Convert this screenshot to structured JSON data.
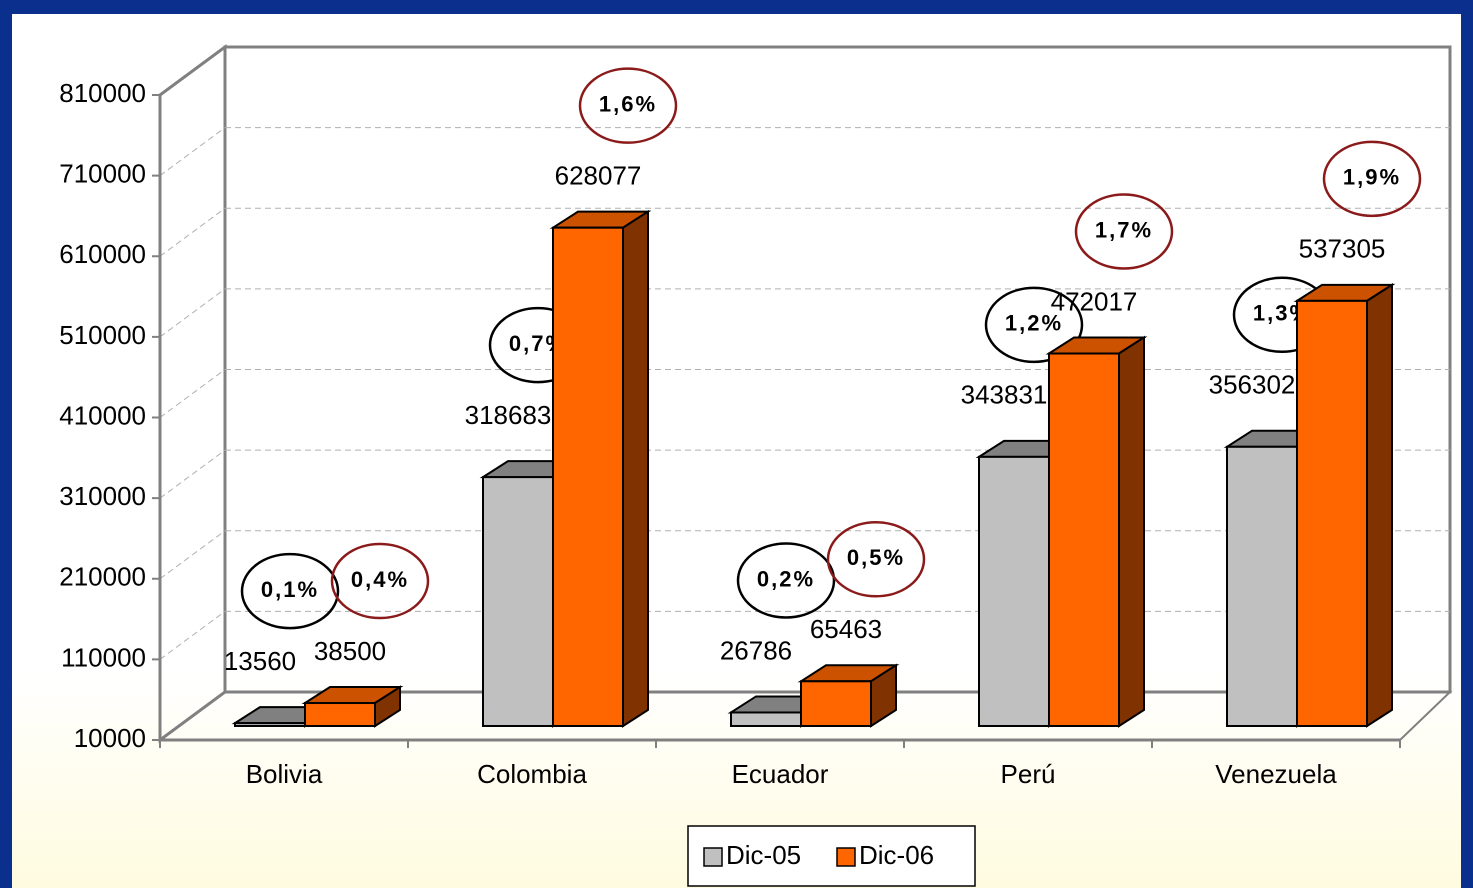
{
  "chart_data": {
    "type": "bar3d",
    "categories": [
      "Bolivia",
      "Colombia",
      "Ecuador",
      "Perú",
      "Venezuela"
    ],
    "series": [
      {
        "name": "Dic-05",
        "color": "#c0c0c0",
        "values": [
          13560,
          318683,
          26786,
          343831,
          356302
        ],
        "percent_labels": [
          "0,1%",
          "0,7%",
          "0,2%",
          "1,2%",
          "1,3%"
        ],
        "percent_color": "#000000"
      },
      {
        "name": "Dic-06",
        "color": "#ff6600",
        "values": [
          38500,
          628077,
          65463,
          472017,
          537305
        ],
        "percent_labels": [
          "0,4%",
          "1,6%",
          "0,5%",
          "1,7%",
          "1,9%"
        ],
        "percent_color": "#8b1a1a"
      }
    ],
    "ylim": [
      10000,
      810000
    ],
    "yticks": [
      10000,
      110000,
      210000,
      310000,
      410000,
      510000,
      610000,
      710000,
      810000
    ],
    "grid": true,
    "legend": "bottom"
  }
}
